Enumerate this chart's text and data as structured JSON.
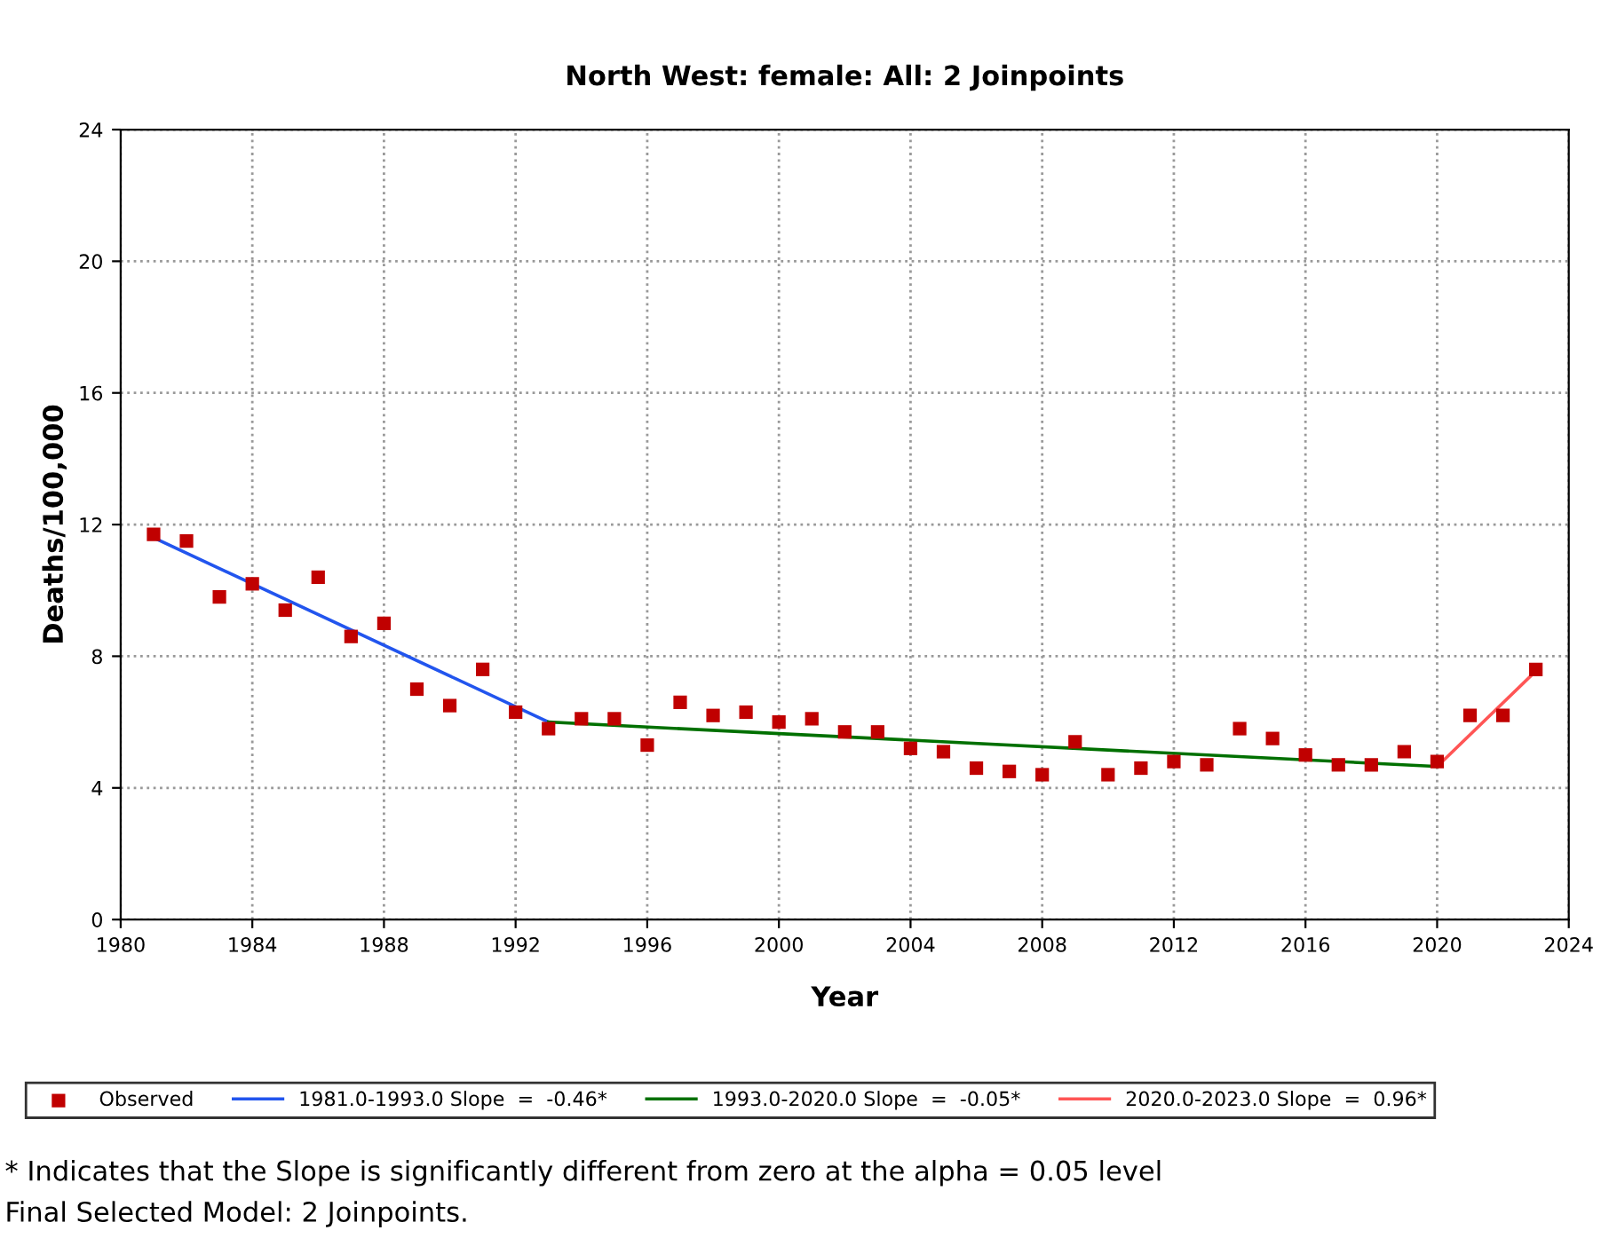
{
  "chart_data": {
    "type": "scatter",
    "title": "North West: female: All: 2 Joinpoints",
    "xlabel": "Year",
    "ylabel": "Deaths/100,000",
    "xlim": [
      1980,
      2024
    ],
    "xticks": [
      1980,
      1984,
      1988,
      1992,
      1996,
      2000,
      2004,
      2008,
      2012,
      2016,
      2020,
      2024
    ],
    "ylim": [
      0,
      24
    ],
    "yticks": [
      0,
      4,
      8,
      12,
      16,
      20,
      24
    ],
    "grid": true,
    "legend": "bottom",
    "series": [
      {
        "name": "Observed",
        "marker": "square",
        "color": "#c00000",
        "x": [
          1981,
          1982,
          1983,
          1984,
          1985,
          1986,
          1987,
          1988,
          1989,
          1990,
          1991,
          1992,
          1993,
          1994,
          1995,
          1996,
          1997,
          1998,
          1999,
          2000,
          2001,
          2002,
          2003,
          2004,
          2005,
          2006,
          2007,
          2008,
          2009,
          2010,
          2011,
          2012,
          2013,
          2014,
          2015,
          2016,
          2017,
          2018,
          2019,
          2020,
          2021,
          2022,
          2023
        ],
        "values": [
          11.7,
          11.5,
          9.8,
          10.2,
          9.4,
          10.4,
          8.6,
          9.0,
          7.0,
          6.5,
          7.6,
          6.3,
          5.8,
          6.1,
          6.1,
          5.3,
          6.6,
          6.2,
          6.3,
          6.0,
          6.1,
          5.7,
          5.7,
          5.2,
          5.1,
          4.6,
          4.5,
          4.4,
          5.4,
          4.4,
          4.6,
          4.8,
          4.7,
          5.8,
          5.5,
          5.0,
          4.7,
          4.7,
          5.1,
          4.8,
          6.2,
          6.2,
          7.6
        ]
      },
      {
        "name": "1981.0-1993.0 Slope  =  -0.46*",
        "type": "line",
        "color": "#2255ee",
        "x": [
          1981,
          1993
        ],
        "values": [
          11.6,
          6.0
        ]
      },
      {
        "name": "1993.0-2020.0 Slope  =  -0.05*",
        "type": "line",
        "color": "#007000",
        "x": [
          1993,
          2020
        ],
        "values": [
          6.0,
          4.65
        ]
      },
      {
        "name": "2020.0-2023.0 Slope  =  0.96*",
        "type": "line",
        "color": "#ff5555",
        "x": [
          2020,
          2023
        ],
        "values": [
          4.65,
          7.55
        ]
      }
    ],
    "annotations": [
      "* Indicates that the Slope is significantly different from zero at the alpha = 0.05 level",
      "Final Selected Model: 2 Joinpoints."
    ]
  }
}
